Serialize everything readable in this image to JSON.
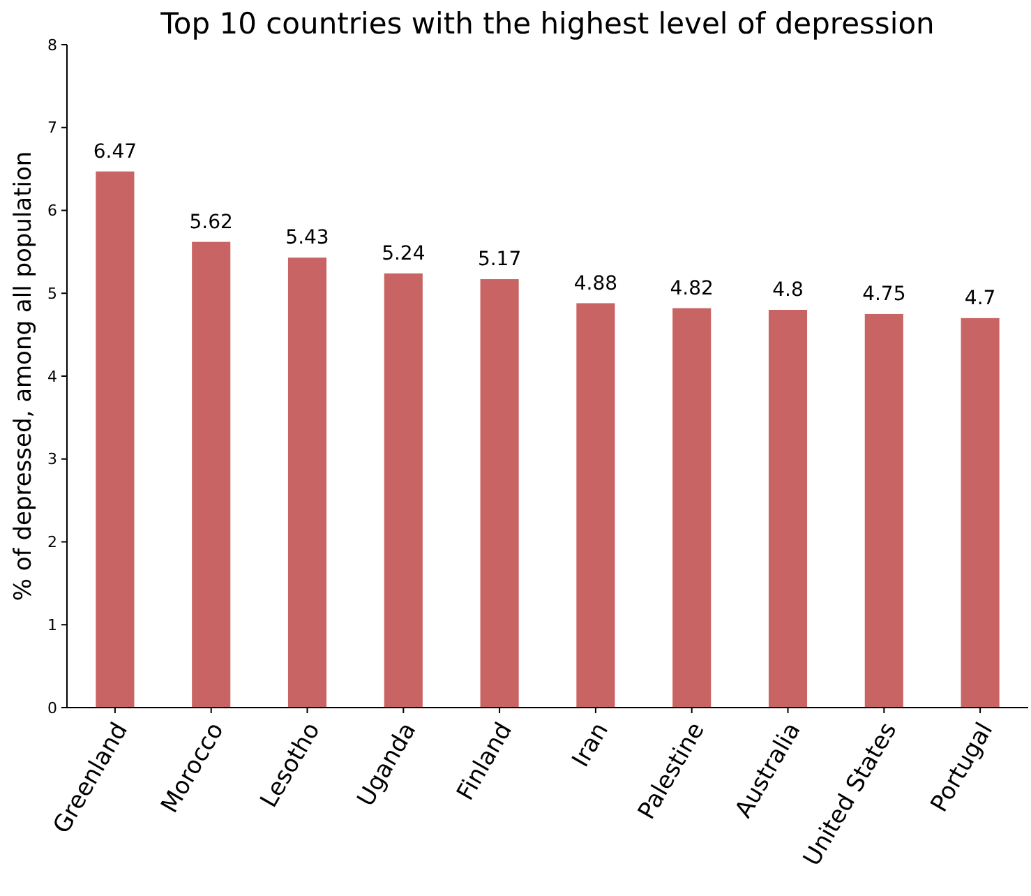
{
  "chart_data": {
    "type": "bar",
    "title": "Top 10 countries with the highest level of depression",
    "ylabel": "% of depressed, among all population",
    "categories": [
      "Greenland",
      "Morocco",
      "Lesotho",
      "Uganda",
      "Finland",
      "Iran",
      "Palestine",
      "Australia",
      "United States",
      "Portugal"
    ],
    "values": [
      6.47,
      5.62,
      5.43,
      5.24,
      5.17,
      4.88,
      4.82,
      4.8,
      4.75,
      4.7
    ],
    "value_labels": [
      "6.47",
      "5.62",
      "5.43",
      "5.24",
      "5.17",
      "4.88",
      "4.82",
      "4.8",
      "4.75",
      "4.7"
    ],
    "color": "#c86463",
    "ylim": [
      0,
      8
    ],
    "yticks": [
      0,
      1,
      2,
      3,
      4,
      5,
      6,
      7,
      8
    ],
    "grid": false
  }
}
